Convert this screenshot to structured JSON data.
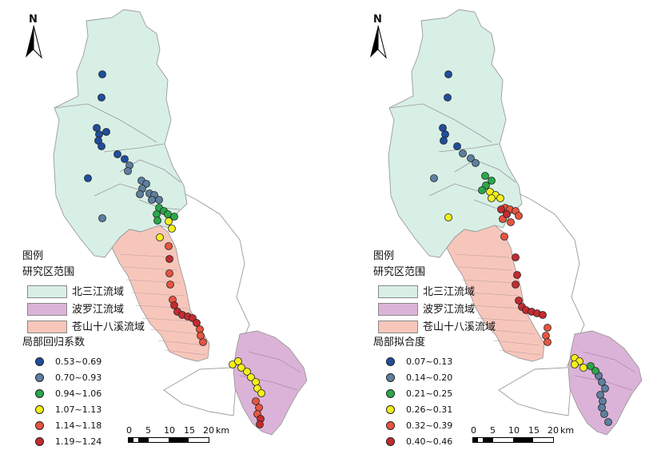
{
  "north_arrow": {
    "label": "N",
    "icon": "north-arrow-icon"
  },
  "colors": {
    "beisanjiang_fill": "#d8efe6",
    "boluojiang_fill": "#dcb3d8",
    "cangshan_fill": "#f7c6bb",
    "boundary": "#9a9a9a",
    "class_1": "#1f4e9c",
    "class_2": "#5e7f9f",
    "class_3": "#2aa84a",
    "class_4": "#f4f01a",
    "class_5": "#e8543f",
    "class_6": "#c32b30"
  },
  "legend_common": {
    "title": "图例",
    "scope_title": "研究区范围",
    "regions": [
      "北三江流域",
      "波罗江流域",
      "苍山十八溪流域"
    ]
  },
  "panels": [
    {
      "id": "left",
      "classes_title": "局部回归系数",
      "classes": [
        "0.53~0.69",
        "0.70~0.93",
        "0.94~1.06",
        "1.07~1.13",
        "1.14~1.18",
        "1.19~1.24"
      ]
    },
    {
      "id": "right",
      "classes_title": "局部拟合度",
      "classes": [
        "0.07~0.13",
        "0.14~0.20",
        "0.21~0.25",
        "0.26~0.31",
        "0.32~0.39",
        "0.40~0.46"
      ]
    }
  ],
  "scale_bar": {
    "ticks": [
      "0",
      "5",
      "10",
      "15",
      "20"
    ],
    "unit": "km"
  }
}
